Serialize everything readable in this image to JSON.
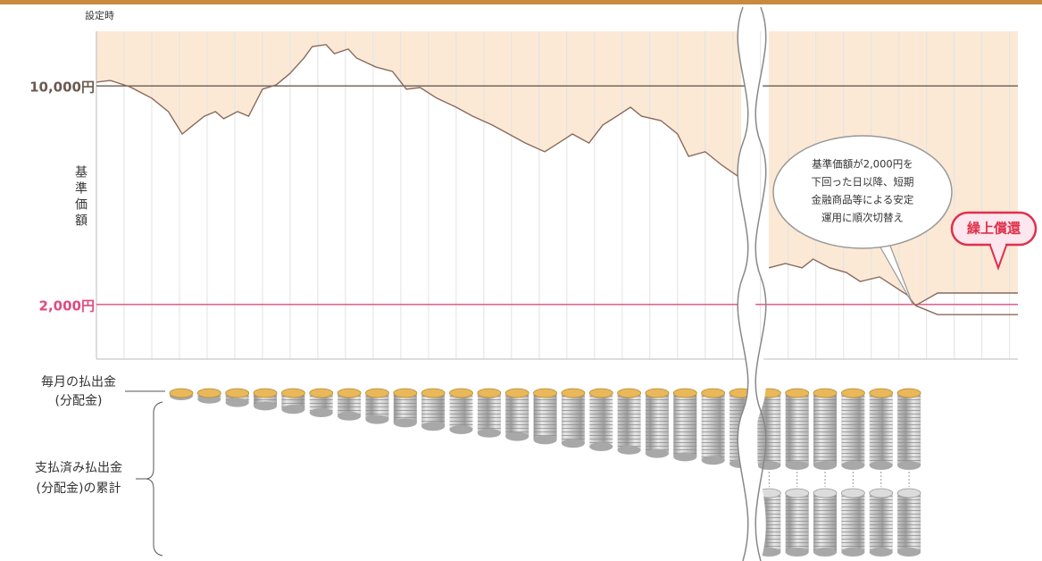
{
  "chart_data": {
    "type": "line",
    "top_label": "設定時",
    "y_label": "基準価額",
    "xlim": [
      0,
      33.3
    ],
    "ylim": [
      0,
      12000
    ],
    "yticks": [
      {
        "value": 10000,
        "label": "10,000円"
      },
      {
        "value": 2000,
        "label": "2,000円"
      }
    ],
    "tick_colors": [
      "#6b5a50",
      "#e04a80"
    ],
    "fill_color": "#fbe9d6",
    "series": [
      {
        "color": "#8a6a5c",
        "x": [
          0,
          0.5,
          1.2,
          2.0,
          2.6,
          3.1,
          3.5,
          3.9,
          4.3,
          4.6,
          5.1,
          5.5,
          6.0,
          6.5,
          7.0,
          7.5,
          7.8,
          8.3,
          8.6,
          9.1,
          9.4,
          10.1,
          10.7,
          11.2,
          11.7,
          12.3,
          13.0,
          13.6,
          14.3,
          14.9,
          15.5,
          16.2,
          16.7,
          17.2,
          17.8,
          18.3,
          18.8,
          19.3,
          19.7,
          20.4,
          21.0,
          21.4,
          22.0,
          22.6,
          23.3,
          24.0,
          24.3,
          24.9,
          25.5,
          25.9,
          26.5,
          27.1,
          27.6,
          28.3,
          28.8,
          29.3,
          29.6
        ],
        "values": [
          10140,
          10200,
          9970,
          9550,
          9060,
          8240,
          8570,
          8890,
          9060,
          8800,
          9060,
          8890,
          9880,
          10040,
          10460,
          11020,
          11440,
          11510,
          11180,
          11350,
          11020,
          10690,
          10530,
          9880,
          9940,
          9550,
          9220,
          8890,
          8570,
          8240,
          7910,
          7590,
          7910,
          8240,
          7910,
          8570,
          8890,
          9220,
          8890,
          8730,
          8240,
          7420,
          7590,
          7100,
          6610,
          null,
          3340,
          3500,
          3340,
          3660,
          3340,
          3170,
          2840,
          3010,
          2680,
          2350,
          1960
        ]
      },
      {
        "color": "#8a6a5c",
        "x": [
          29.6,
          30.4,
          33.3
        ],
        "values": [
          1960,
          2420,
          2420
        ]
      },
      {
        "color": "#8a6a5c",
        "x": [
          29.6,
          30.4,
          33.3
        ],
        "values": [
          1960,
          1630,
          1630
        ]
      }
    ],
    "callout": {
      "lines": [
        "基準価額が2,000円を",
        "下回った日以降、短期",
        "金融商品等による安定",
        "運用に順次切替え"
      ]
    },
    "badge": "繰上償還",
    "coin_labels": {
      "monthly": [
        "毎月の払出金",
        "(分配金)"
      ],
      "cumulative": [
        "支払済み払出金",
        "(分配金)の累計"
      ]
    }
  }
}
